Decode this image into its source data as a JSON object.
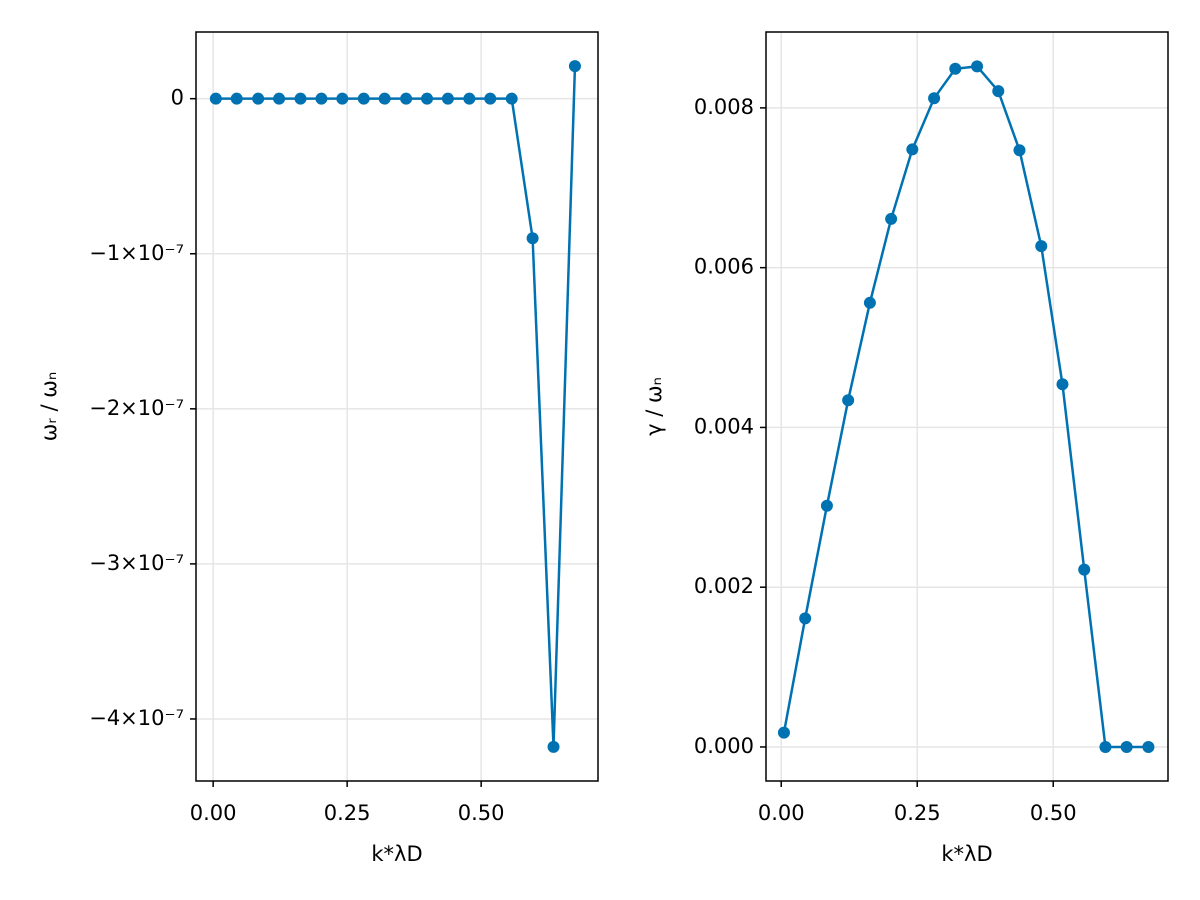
{
  "chart_data": [
    {
      "type": "scatterline",
      "x_label": "k*λD",
      "y_label": "ωᵣ / ωₙ",
      "color": "#0072b2",
      "grid": true,
      "x": [
        0.005,
        0.044,
        0.084,
        0.123,
        0.163,
        0.202,
        0.241,
        0.281,
        0.32,
        0.36,
        0.399,
        0.438,
        0.478,
        0.517,
        0.557,
        0.596,
        0.635,
        0.675
      ],
      "values": [
        0,
        0,
        0,
        0,
        0,
        0,
        0,
        0,
        0,
        0,
        0,
        0,
        0,
        0,
        0,
        -9e-08,
        -4.18e-07,
        2.1e-08
      ],
      "xlim": [
        -0.032,
        0.718
      ],
      "ylim": [
        -4.4e-07,
        4.3e-08
      ],
      "xticks": [
        {
          "value": 0,
          "label": "0.00"
        },
        {
          "value": 0.25,
          "label": "0.25"
        },
        {
          "value": 0.5,
          "label": "0.50"
        }
      ],
      "yticks": [
        0,
        {
          "value": -1e-07,
          "label": "−1×10⁻⁷"
        },
        {
          "value": -2e-07,
          "label": "−2×10⁻⁷"
        },
        {
          "value": -3e-07,
          "label": "−3×10⁻⁷"
        },
        {
          "value": -4e-07,
          "label": "−4×10⁻⁷"
        }
      ]
    },
    {
      "type": "scatterline",
      "x_label": "k*λD",
      "y_label": "γ / ωₙ",
      "color": "#0072b2",
      "grid": true,
      "x": [
        0.005,
        0.044,
        0.084,
        0.123,
        0.163,
        0.202,
        0.241,
        0.281,
        0.32,
        0.36,
        0.399,
        0.438,
        0.478,
        0.517,
        0.557,
        0.596,
        0.635,
        0.675
      ],
      "values": [
        0.00018,
        0.00161,
        0.00302,
        0.00434,
        0.00556,
        0.00661,
        0.00748,
        0.00812,
        0.00849,
        0.00852,
        0.00821,
        0.00747,
        0.00627,
        0.00454,
        0.00222,
        0,
        0,
        0
      ],
      "xlim": [
        -0.028,
        0.711
      ],
      "ylim": [
        -0.000426,
        0.00895
      ],
      "xticks": [
        {
          "value": 0,
          "label": "0.00"
        },
        {
          "value": 0.25,
          "label": "0.25"
        },
        {
          "value": 0.5,
          "label": "0.50"
        }
      ],
      "yticks": [
        {
          "value": 0,
          "label": "0.000"
        },
        {
          "value": 0.002,
          "label": "0.002"
        },
        {
          "value": 0.004,
          "label": "0.004"
        },
        {
          "value": 0.006,
          "label": "0.006"
        },
        {
          "value": 0.008,
          "label": "0.008"
        }
      ]
    }
  ]
}
